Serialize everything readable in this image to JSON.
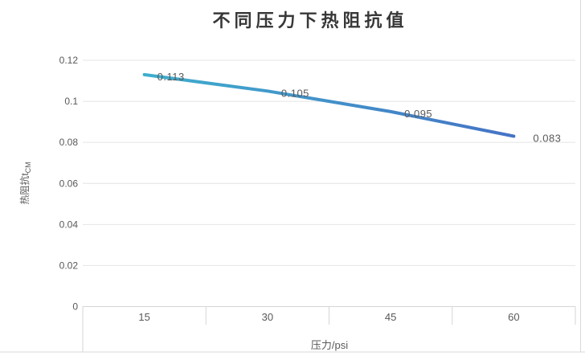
{
  "chart_data": {
    "type": "line",
    "title": "不同压力下热阻抗值",
    "categories": [
      "15",
      "30",
      "45",
      "60"
    ],
    "series": [
      {
        "name": "热阻抗",
        "values": [
          0.113,
          0.105,
          0.095,
          0.083
        ],
        "point_labels": [
          "0.113",
          "0.105",
          "0.095",
          "0.083"
        ]
      }
    ],
    "xlabel": "压力/psi",
    "ylabel": {
      "main": "热阻抗t",
      "sub": "CM"
    },
    "ylim": [
      0,
      0.12
    ],
    "ytick_step": 0.02,
    "yticks": [
      {
        "v": 0,
        "label": "0"
      },
      {
        "v": 0.02,
        "label": "0.02"
      },
      {
        "v": 0.04,
        "label": "0.04"
      },
      {
        "v": 0.06,
        "label": "0.06"
      },
      {
        "v": 0.08,
        "label": "0.08"
      },
      {
        "v": 0.1,
        "label": "0.1"
      },
      {
        "v": 0.12,
        "label": "0.12"
      }
    ],
    "grid": true,
    "legend": "none",
    "colors": {
      "line_start": "#3FAECD",
      "line_end": "#4573C5",
      "grid": "#E4E4E4",
      "axis": "#D6D6D6",
      "border": "#D9D9D9",
      "tick_text": "#595959",
      "title_text": "#383838",
      "label_text": "#595959"
    }
  }
}
